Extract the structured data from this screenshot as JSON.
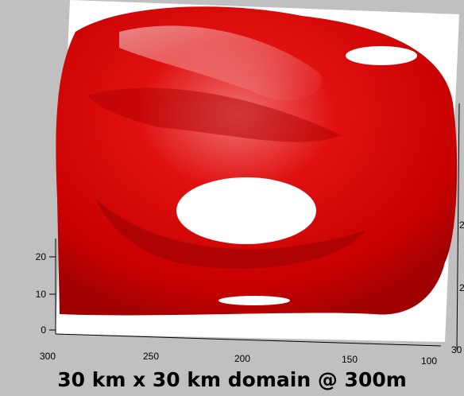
{
  "axes": {
    "left_ticks": [
      "20",
      "10",
      "0"
    ],
    "bottom_ticks": [
      "300",
      "250",
      "200",
      "150",
      "100"
    ],
    "right_ticks": [
      "2",
      "2",
      "30"
    ]
  },
  "caption": "30 km x 30 km domain @ 300m"
}
